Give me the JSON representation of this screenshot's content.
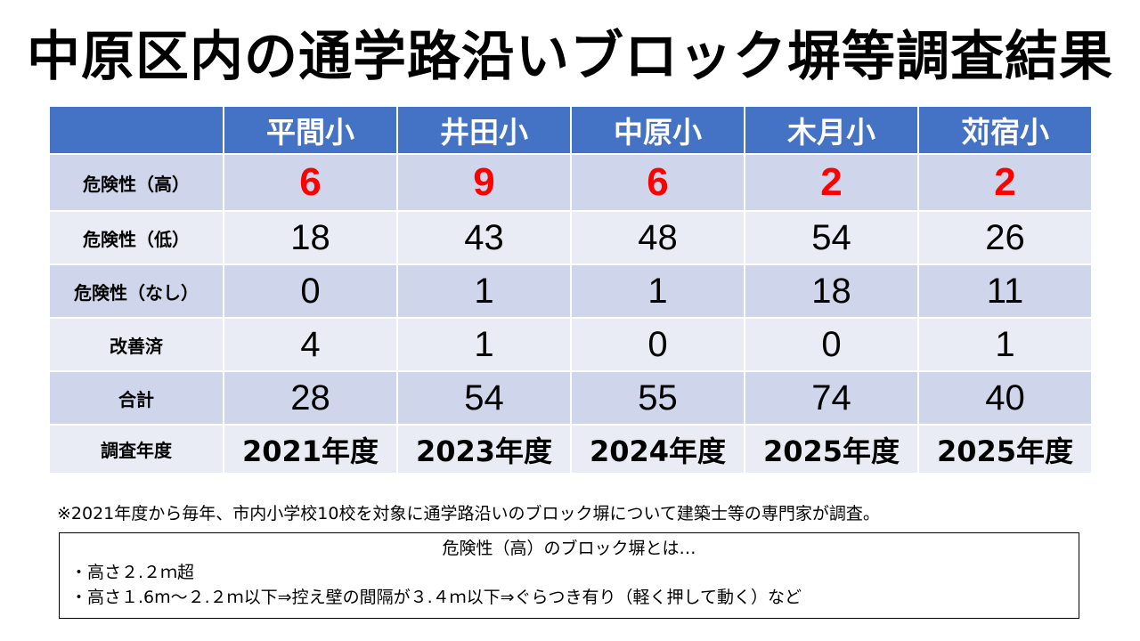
{
  "title": "中原区内の通学路沿いブロック塀等調査結果",
  "table": {
    "corner": "",
    "schools": [
      "平間小",
      "井田小",
      "中原小",
      "木月小",
      "苅宿小"
    ],
    "rows": [
      {
        "label": "危険性（高）",
        "values": [
          "6",
          "9",
          "6",
          "2",
          "2"
        ]
      },
      {
        "label": "危険性（低）",
        "values": [
          "18",
          "43",
          "48",
          "54",
          "26"
        ]
      },
      {
        "label": "危険性（なし）",
        "values": [
          "0",
          "1",
          "1",
          "18",
          "11"
        ]
      },
      {
        "label": "改善済",
        "values": [
          "4",
          "1",
          "0",
          "0",
          "1"
        ]
      },
      {
        "label": "合計",
        "values": [
          "28",
          "54",
          "55",
          "74",
          "40"
        ]
      },
      {
        "label": "調査年度",
        "values": [
          "2021年度",
          "2023年度",
          "2024年度",
          "2025年度",
          "2025年度"
        ]
      }
    ]
  },
  "footnote": "※2021年度から毎年、市内小学校10校を対象に通学路沿いのブロック塀について建築士等の専門家が調査。",
  "definition": {
    "heading": "危険性（高）のブロック塀とは…",
    "lines": [
      "・高さ２.２ｍ超",
      "・高さ１.6m～２.２ｍ以下⇒控え壁の間隔が３.４ｍ以下⇒ぐらつき有り（軽く押して動く）など"
    ]
  },
  "colors": {
    "header_bg": "#4472c4",
    "row_dark": "#cfd5ea",
    "row_light": "#e9ebf5",
    "high_risk_value": "#ff0000"
  }
}
